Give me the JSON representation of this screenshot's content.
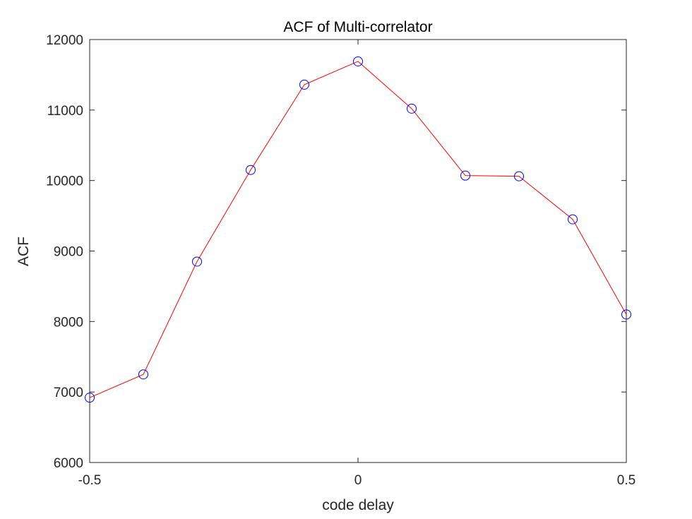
{
  "chart_data": {
    "type": "line",
    "title": "ACF of Multi-correlator",
    "xlabel": "code delay",
    "ylabel": "ACF",
    "xlim": [
      -0.5,
      0.5
    ],
    "ylim": [
      6000,
      12000
    ],
    "xticks": [
      -0.5,
      0,
      0.5
    ],
    "xtick_labels": [
      "-0.5",
      "0",
      "0.5"
    ],
    "yticks": [
      6000,
      7000,
      8000,
      9000,
      10000,
      11000,
      12000
    ],
    "ytick_labels": [
      "6000",
      "7000",
      "8000",
      "9000",
      "10000",
      "11000",
      "12000"
    ],
    "grid": false,
    "series": [
      {
        "x": [
          -0.5,
          -0.4,
          -0.3,
          -0.2,
          -0.1,
          0,
          0.1,
          0.2,
          0.3,
          0.4,
          0.5
        ],
        "y": [
          6920,
          7250,
          8850,
          10150,
          11360,
          11690,
          11020,
          10070,
          10060,
          9450,
          8100
        ],
        "line_color": "#ff0000",
        "marker": "circle",
        "marker_color": "#0000ff"
      }
    ]
  }
}
